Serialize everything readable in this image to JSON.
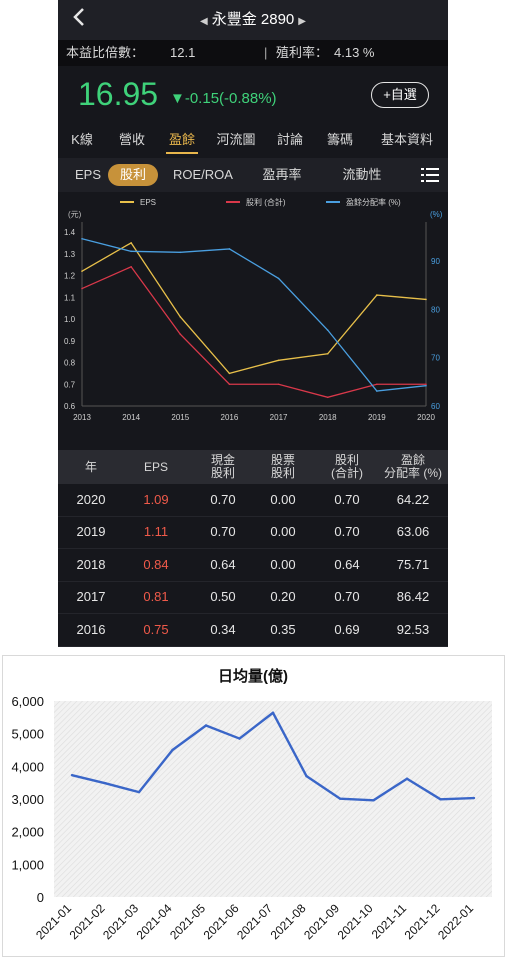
{
  "header": {
    "title": "永豐金 2890",
    "back_icon": "chevron-left-icon",
    "prev_icon": "triangle-left-icon",
    "next_icon": "triangle-right-icon"
  },
  "metrics": {
    "pe_label": "本益比倍數：",
    "pe_value": "12.1",
    "sep": "|",
    "yield_label": "殖利率：",
    "yield_value": "4.13 %"
  },
  "quote": {
    "price": "16.95",
    "change": "▼-0.15(-0.88%)",
    "add_label": "+自選",
    "color_down": "#3fd27a"
  },
  "tabs": [
    "K線",
    "營收",
    "盈餘",
    "河流圖",
    "討論",
    "籌碼",
    "基本資料"
  ],
  "active_tab": "盈餘",
  "subtabs": [
    "EPS",
    "股利",
    "ROE/ROA",
    "盈再率",
    "流動性"
  ],
  "active_subtab": "股利",
  "earnings_chart": {
    "chart_data": {
      "type": "line",
      "x": [
        "2013",
        "2014",
        "2015",
        "2016",
        "2017",
        "2018",
        "2019",
        "2020"
      ],
      "series": [
        {
          "name": "EPS",
          "color": "#e8c04a",
          "axis": "left",
          "values": [
            1.22,
            1.35,
            1.01,
            0.75,
            0.81,
            0.84,
            1.11,
            1.09
          ]
        },
        {
          "name": "股利 (合計)",
          "color": "#d9384a",
          "axis": "left",
          "values": [
            1.14,
            1.24,
            0.93,
            0.7,
            0.7,
            0.64,
            0.7,
            0.7
          ]
        },
        {
          "name": "盈餘分配率 (%)",
          "color": "#4a9fe0",
          "axis": "right",
          "values": [
            94.6,
            92.0,
            91.8,
            92.5,
            86.4,
            75.7,
            63.1,
            64.2
          ]
        }
      ],
      "left_unit": "(元)",
      "right_unit": "(%)",
      "left_ticks": [
        "1.4",
        "1.3",
        "1.2",
        "1.1",
        "1.0",
        "0.9",
        "0.8",
        "0.7",
        "0.6"
      ],
      "right_ticks": [
        "90",
        "80",
        "70",
        "60"
      ],
      "ylim_left": [
        0.6,
        1.4
      ],
      "ylim_right": [
        60,
        96
      ],
      "legend_position": "top"
    }
  },
  "table": {
    "headers": [
      [
        "年"
      ],
      [
        "EPS"
      ],
      [
        "現金",
        "股利"
      ],
      [
        "股票",
        "股利"
      ],
      [
        "股利",
        "(合計)"
      ],
      [
        "盈餘",
        "分配率 (%)"
      ]
    ],
    "rows": [
      [
        "2020",
        "1.09",
        "0.70",
        "0.00",
        "0.70",
        "64.22"
      ],
      [
        "2019",
        "1.11",
        "0.70",
        "0.00",
        "0.70",
        "63.06"
      ],
      [
        "2018",
        "0.84",
        "0.64",
        "0.00",
        "0.64",
        "75.71"
      ],
      [
        "2017",
        "0.81",
        "0.50",
        "0.20",
        "0.70",
        "86.42"
      ],
      [
        "2016",
        "0.75",
        "0.34",
        "0.35",
        "0.69",
        "92.53"
      ]
    ]
  },
  "volume_chart": {
    "chart_data": {
      "type": "line",
      "title": "日均量(億)",
      "categories": [
        "2021-01",
        "2021-02",
        "2021-03",
        "2021-04",
        "2021-05",
        "2021-06",
        "2021-07",
        "2021-08",
        "2021-09",
        "2021-10",
        "2021-11",
        "2021-12",
        "2022-01"
      ],
      "values": [
        3730,
        3480,
        3210,
        4500,
        5250,
        4850,
        5640,
        3700,
        3010,
        2960,
        3620,
        2990,
        3030
      ],
      "yticks": [
        "0",
        "1,000",
        "2,000",
        "3,000",
        "4,000",
        "5,000",
        "6,000"
      ],
      "ylim": [
        0,
        6000
      ],
      "line_color": "#3a66c8",
      "grid": false
    }
  }
}
